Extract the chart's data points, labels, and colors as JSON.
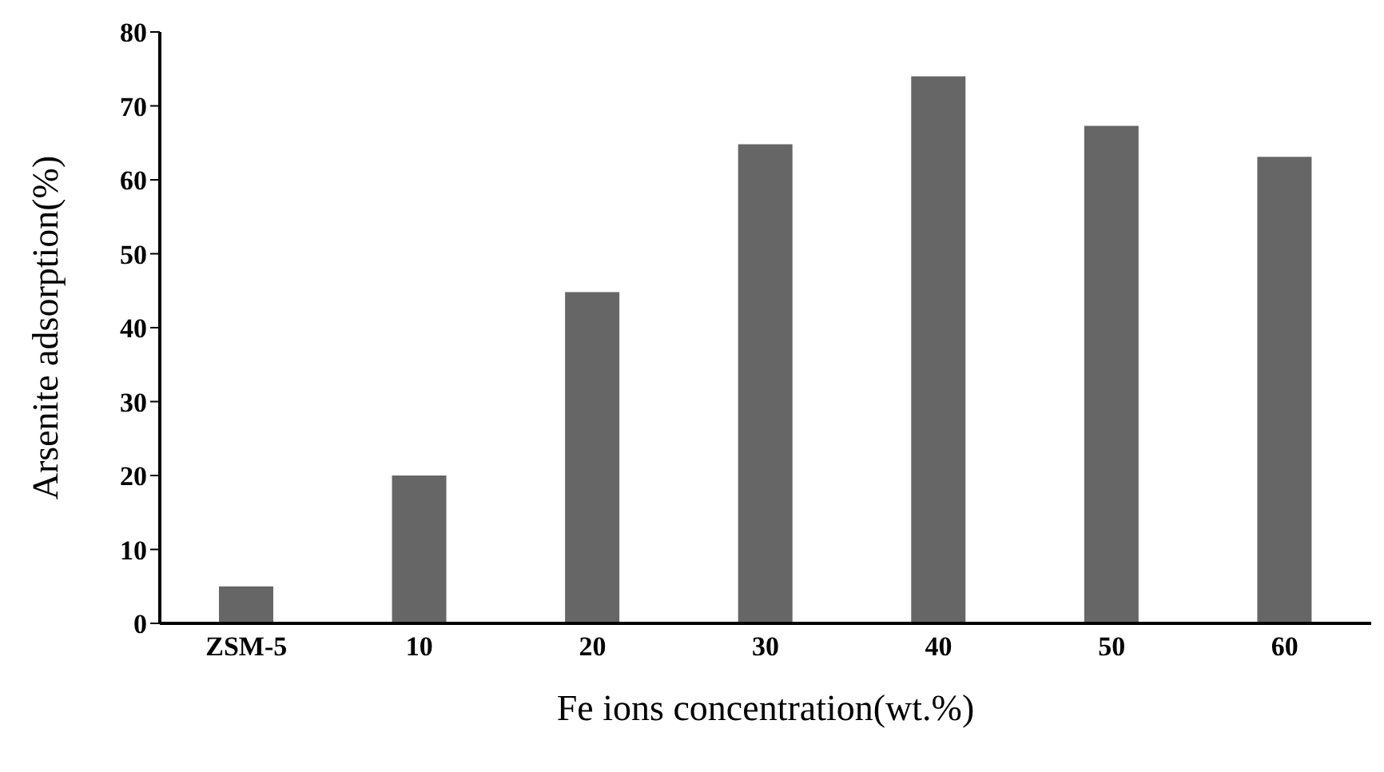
{
  "chart_data": {
    "type": "bar",
    "xlabel": "Fe ions concentration(wt.%)",
    "ylabel": "Arsenite adsorption(%)",
    "categories": [
      "ZSM-5",
      "10",
      "20",
      "30",
      "40",
      "50",
      "60"
    ],
    "values": [
      5,
      20,
      44.8,
      64.8,
      74,
      67.3,
      63.1
    ],
    "color": "#666666",
    "ylim": [
      0,
      80
    ],
    "yticks": [
      0,
      10,
      20,
      30,
      40,
      50,
      60,
      70,
      80
    ],
    "grid": false,
    "legend": false
  }
}
